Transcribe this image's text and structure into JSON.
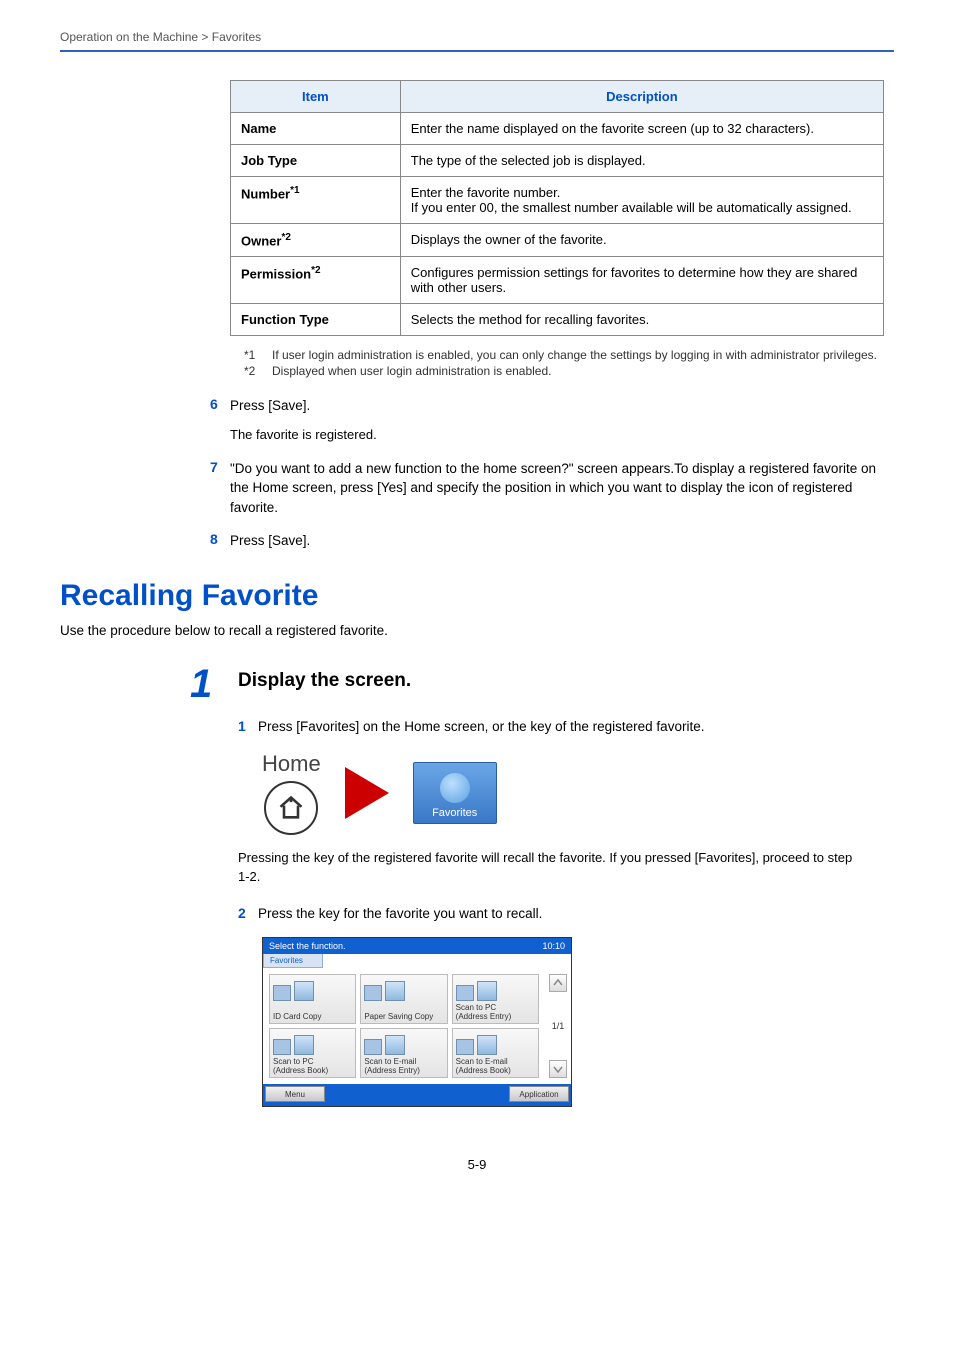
{
  "breadcrumb": "Operation on the Machine > Favorites",
  "table": {
    "header_item": "Item",
    "header_desc": "Description",
    "rows": [
      {
        "item": "Name",
        "sup": "",
        "desc": "Enter the name displayed on the favorite screen (up to 32 characters)."
      },
      {
        "item": "Job Type",
        "sup": "",
        "desc": "The type of the selected job is displayed."
      },
      {
        "item": "Number",
        "sup": "*1",
        "desc": "Enter the favorite number.\nIf you enter 00, the smallest number available will be automatically assigned."
      },
      {
        "item": "Owner",
        "sup": "*2",
        "desc": "Displays the owner of the favorite."
      },
      {
        "item": "Permission",
        "sup": "*2",
        "desc": "Configures permission settings for favorites to determine how they are shared with other users."
      },
      {
        "item": "Function Type",
        "sup": "",
        "desc": "Selects the method for recalling favorites."
      }
    ]
  },
  "footnotes": [
    {
      "num": "*1",
      "text": "If user login administration is enabled, you can only change the settings by logging in with administrator privileges."
    },
    {
      "num": "*2",
      "text": "Displayed when user login administration is enabled."
    }
  ],
  "steps_top": [
    {
      "n": "6",
      "body": "Press [Save].",
      "sub": "The favorite is registered."
    },
    {
      "n": "7",
      "body": "\"Do you want to add a new function to the home screen?\" screen appears.To display a registered favorite on the Home screen, press [Yes] and specify the position in which you want to display the icon of registered favorite.",
      "sub": ""
    },
    {
      "n": "8",
      "body": "Press [Save].",
      "sub": ""
    }
  ],
  "section_title": "Recalling Favorite",
  "intro": "Use the procedure below to recall a registered favorite.",
  "bigstep": {
    "n": "1",
    "heading": "Display the screen."
  },
  "sub1": {
    "n": "1",
    "body": "Press [Favorites] on the Home screen, or the key of the registered favorite."
  },
  "home": {
    "label": "Home",
    "tile_label": "Favorites"
  },
  "desc1": "Pressing the key of the registered favorite will recall the favorite. If you pressed [Favorites], proceed to step 1-2.",
  "sub2": {
    "n": "2",
    "body": "Press the key for the favorite you want to recall."
  },
  "panel": {
    "top_text": "Select the function.",
    "top_time": "10:10",
    "tab": "Favorites",
    "cells": [
      "ID Card Copy",
      "Paper Saving Copy",
      "Scan to PC\n(Address Entry)",
      "Scan to PC\n(Address Book)",
      "Scan to E-mail\n(Address Entry)",
      "Scan to E-mail\n(Address Book)"
    ],
    "page_indicator": "1/1",
    "bottom_left": "Menu",
    "bottom_right": "Application"
  },
  "page_number": "5-9",
  "colors": {
    "accent": "#0050c8",
    "header_rule": "#3060c0",
    "table_header_bg": "#e6eef8",
    "panel_blue": "#1060d0",
    "triangle": "#cc0000"
  }
}
